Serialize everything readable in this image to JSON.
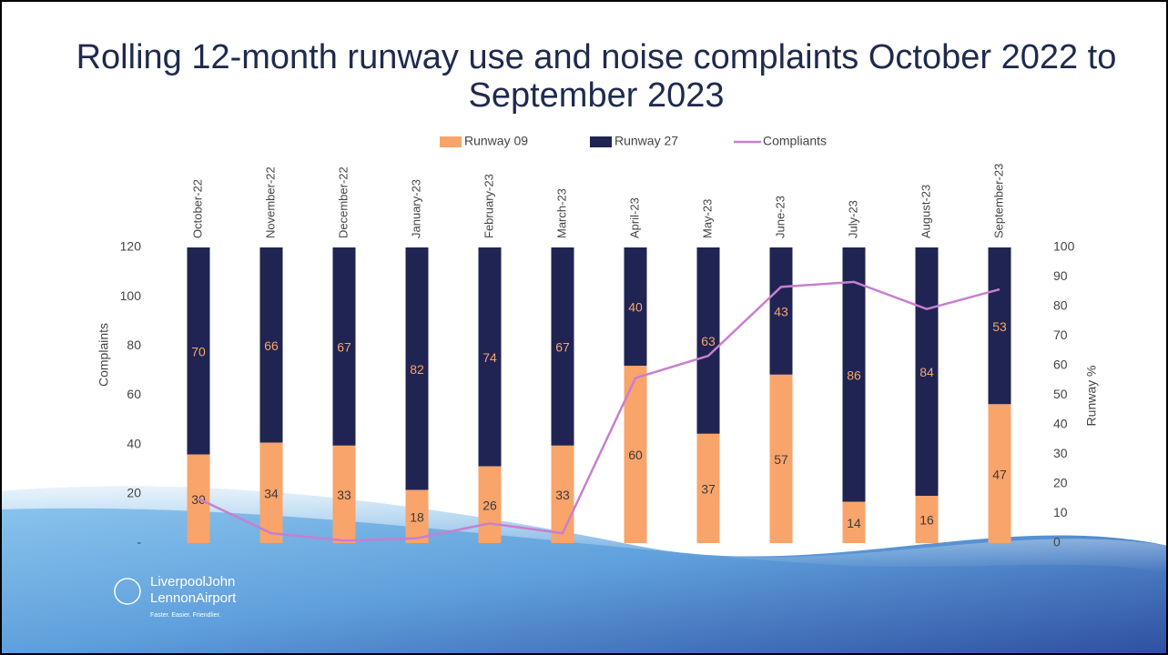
{
  "chart_data": {
    "type": "bar-line",
    "title": "Rolling 12-month runway use and noise complaints October 2022 to September 2023",
    "categories": [
      "October-22",
      "November-22",
      "December-22",
      "January-23",
      "February-23",
      "March-23",
      "April-23",
      "May-23",
      "June-23",
      "July-23",
      "August-23",
      "September-23"
    ],
    "series": [
      {
        "name": "Runway 09",
        "type": "bar",
        "stacked": true,
        "axis": "y2",
        "color": "#f9a46a",
        "label_color": "#3b3b3b",
        "values": [
          30,
          34,
          33,
          18,
          26,
          33,
          60,
          37,
          57,
          14,
          16,
          47
        ]
      },
      {
        "name": "Runway 27",
        "type": "bar",
        "stacked": true,
        "axis": "y2",
        "color": "#1f2452",
        "label_color": "#f9a46a",
        "values": [
          70,
          66,
          67,
          82,
          74,
          67,
          40,
          63,
          43,
          86,
          84,
          53
        ]
      },
      {
        "name": "Compliants",
        "type": "line",
        "axis": "y",
        "color": "#c77fcf",
        "values": [
          18,
          4,
          1,
          2,
          8,
          4,
          67,
          76,
          104,
          106,
          95,
          103
        ]
      }
    ],
    "y_label": "Complaints",
    "y2_label": "Runway %",
    "ylim": [
      0,
      120
    ],
    "yticks": [
      {
        "value": 0,
        "label": "-"
      },
      20,
      40,
      60,
      80,
      100,
      120
    ],
    "y2lim": [
      0,
      100
    ],
    "y2ticks": [
      0,
      10,
      20,
      30,
      40,
      50,
      60,
      70,
      80,
      90,
      100
    ],
    "legend": "top",
    "grid": false
  },
  "logo": {
    "line1": "LiverpoolJohn",
    "line2": "LennonAirport",
    "tagline": "Faster. Easier. Friendlier."
  }
}
